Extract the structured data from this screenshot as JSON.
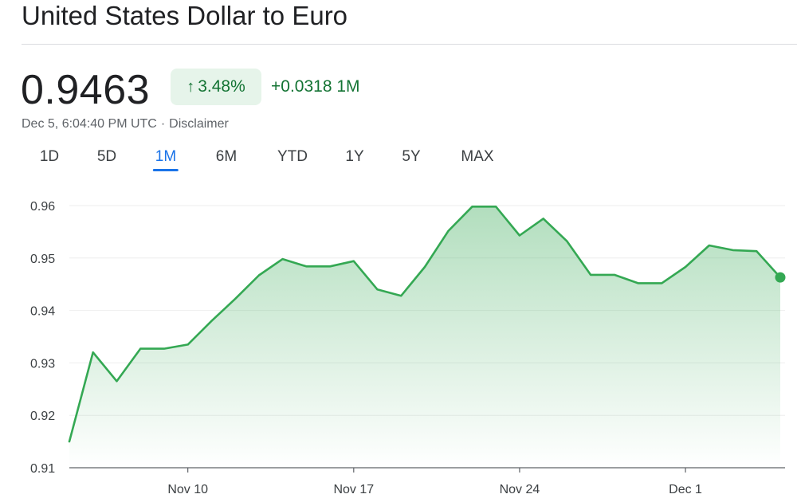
{
  "header": {
    "title": "United States Dollar to Euro"
  },
  "quote": {
    "price": "0.9463",
    "percent_change": "3.48%",
    "arrow_icon": "arrow-up-icon",
    "abs_change": "+0.0318 1M",
    "timestamp": "Dec 5, 6:04:40 PM UTC",
    "separator": "·",
    "disclaimer": "Disclaimer"
  },
  "ranges": [
    "1D",
    "5D",
    "1M",
    "6M",
    "YTD",
    "1Y",
    "5Y",
    "MAX"
  ],
  "active_range": "1M",
  "colors": {
    "positive": "#137333",
    "line": "#34a853",
    "active_tab": "#1a73e8",
    "badge_bg": "#e6f4ea"
  },
  "chart_data": {
    "type": "area",
    "title": "",
    "xlabel": "",
    "ylabel": "",
    "ylim": [
      0.91,
      0.96
    ],
    "yticks": [
      0.91,
      0.92,
      0.93,
      0.94,
      0.95,
      0.96
    ],
    "ytick_labels": [
      "0.91",
      "0.92",
      "0.93",
      "0.94",
      "0.95",
      "0.96"
    ],
    "xticks": [
      {
        "label": "Nov 10",
        "x": "2023-11-10"
      },
      {
        "label": "Nov 17",
        "x": "2023-11-17"
      },
      {
        "label": "Nov 24",
        "x": "2023-11-24"
      },
      {
        "label": "Dec 1",
        "x": "2023-12-01"
      }
    ],
    "grid": "horizontal",
    "series": [
      {
        "points": [
          {
            "x": "2023-11-05",
            "y": 0.915
          },
          {
            "x": "2023-11-06",
            "y": 0.932
          },
          {
            "x": "2023-11-07",
            "y": 0.9265
          },
          {
            "x": "2023-11-08",
            "y": 0.9327
          },
          {
            "x": "2023-11-09",
            "y": 0.9327
          },
          {
            "x": "2023-11-10",
            "y": 0.9335
          },
          {
            "x": "2023-11-11",
            "y": 0.938
          },
          {
            "x": "2023-11-12",
            "y": 0.9422
          },
          {
            "x": "2023-11-13",
            "y": 0.9467
          },
          {
            "x": "2023-11-14",
            "y": 0.9498
          },
          {
            "x": "2023-11-15",
            "y": 0.9484
          },
          {
            "x": "2023-11-16",
            "y": 0.9484
          },
          {
            "x": "2023-11-17",
            "y": 0.9494
          },
          {
            "x": "2023-11-18",
            "y": 0.944
          },
          {
            "x": "2023-11-19",
            "y": 0.9428
          },
          {
            "x": "2023-11-20",
            "y": 0.9483
          },
          {
            "x": "2023-11-21",
            "y": 0.9552
          },
          {
            "x": "2023-11-22",
            "y": 0.9598
          },
          {
            "x": "2023-11-23",
            "y": 0.9598
          },
          {
            "x": "2023-11-24",
            "y": 0.9543
          },
          {
            "x": "2023-11-25",
            "y": 0.9575
          },
          {
            "x": "2023-11-26",
            "y": 0.9532
          },
          {
            "x": "2023-11-27",
            "y": 0.9468
          },
          {
            "x": "2023-11-28",
            "y": 0.9468
          },
          {
            "x": "2023-11-29",
            "y": 0.9452
          },
          {
            "x": "2023-11-30",
            "y": 0.9452
          },
          {
            "x": "2023-12-01",
            "y": 0.9483
          },
          {
            "x": "2023-12-02",
            "y": 0.9524
          },
          {
            "x": "2023-12-03",
            "y": 0.9515
          },
          {
            "x": "2023-12-04",
            "y": 0.9513
          },
          {
            "x": "2023-12-05",
            "y": 0.9463
          }
        ]
      }
    ]
  }
}
